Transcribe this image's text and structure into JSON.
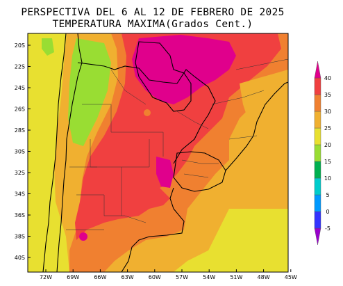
{
  "map": {
    "title": "PERSPECTIVA DEL 6 AL 12 DE FEBRERO DE 2025",
    "subtitle": "TEMPERATURA MAXIMA(Grados Cent.)",
    "lat_labels": [
      "20S",
      "22S",
      "24S",
      "26S",
      "28S",
      "30S",
      "32S",
      "34S",
      "36S",
      "38S",
      "40S"
    ],
    "lon_labels": [
      "72W",
      "69W",
      "66W",
      "63W",
      "60W",
      "57W",
      "54W",
      "51W",
      "48W",
      "45W"
    ],
    "legend": {
      "levels": [
        "-5",
        "0",
        "5",
        "10",
        "15",
        "20",
        "25",
        "30",
        "35",
        "40"
      ],
      "colors": [
        "#9900cc",
        "#3333ff",
        "#0099ff",
        "#00cccc",
        "#00b050",
        "#99dd33",
        "#e8e030",
        "#f0b030",
        "#f08030",
        "#f04040",
        "#e0008c"
      ]
    },
    "colors": {
      "t20": "#99dd33",
      "t25": "#e8e030",
      "t30": "#f0b030",
      "t35": "#f08030",
      "t40": "#f04040",
      "t40p": "#e0008c"
    }
  }
}
